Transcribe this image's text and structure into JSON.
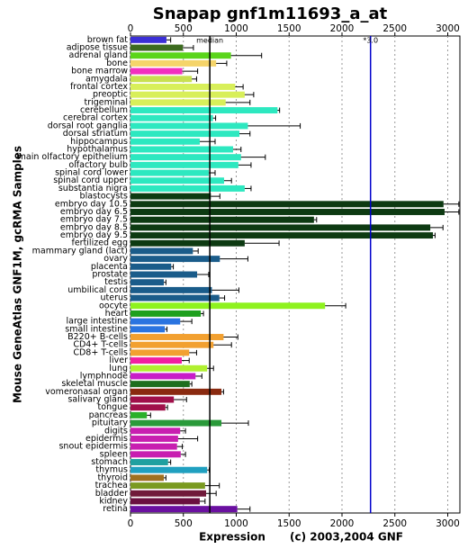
{
  "chart_data": {
    "type": "hbar",
    "title": "Snapap gnf1m11693_a_at",
    "x_label": "Expression",
    "footnote": "(c) 2003,2004 GNF",
    "y_label": "Mouse GeneAtlas GNF1M, gcRMA Samples",
    "xlim": [
      0,
      3115
    ],
    "xticks": [
      0,
      500,
      1000,
      1500,
      2000,
      2500,
      3000
    ],
    "grid": true,
    "reference_lines": [
      {
        "label": "median",
        "value": 750,
        "color": "#000000"
      },
      {
        "label": "*3.0",
        "value": 2270,
        "color": "#0000cc"
      }
    ],
    "categories": [
      "brown fat",
      "adipose tissue",
      "adrenal gland",
      "bone",
      "bone marrow",
      "amygdala",
      "frontal cortex",
      "preoptic",
      "trigeminal",
      "cerebellum",
      "cerebral cortex",
      "dorsal root ganglia",
      "dorsal striatum",
      "hippocampus",
      "hypothalamus",
      "main olfactory epithelium",
      "olfactory bulb",
      "spinal cord lower",
      "spinal cord upper",
      "substantia nigra",
      "blastocysts",
      "embryo day 10.5",
      "embryo day 6.5",
      "embryo day 7.5",
      "embryo day 8.5",
      "embryo day 9.5",
      "fertilized egg",
      "mammary gland (lact)",
      "ovary",
      "placenta",
      "prostate",
      "testis",
      "umbilical cord",
      "uterus",
      "oocyte",
      "heart",
      "large intestine",
      "small intestine",
      "B220+ B-cells",
      "CD4+ T-cells",
      "CD8+ T-cells",
      "liver",
      "lung",
      "lymphnode",
      "skeletal muscle",
      "vomeronasal organ",
      "salivary gland",
      "tongue",
      "pancreas",
      "pituitary",
      "digits",
      "epidermis",
      "snout epidermis",
      "spleen",
      "stomach",
      "thymus",
      "thyroid",
      "trachea",
      "bladder",
      "kidney",
      "retina"
    ],
    "values": [
      340,
      495,
      950,
      810,
      490,
      580,
      990,
      1080,
      900,
      1390,
      780,
      1110,
      1030,
      655,
      970,
      1045,
      1020,
      740,
      885,
      1080,
      760,
      2960,
      2970,
      1735,
      2835,
      2860,
      1080,
      590,
      845,
      385,
      630,
      315,
      770,
      840,
      1840,
      665,
      470,
      325,
      880,
      785,
      555,
      485,
      725,
      615,
      560,
      860,
      410,
      330,
      155,
      860,
      470,
      450,
      440,
      475,
      355,
      725,
      315,
      705,
      715,
      655,
      1010
    ],
    "errors": [
      40,
      100,
      290,
      100,
      145,
      45,
      75,
      85,
      230,
      20,
      25,
      495,
      100,
      145,
      75,
      230,
      120,
      60,
      70,
      60,
      85,
      145,
      135,
      25,
      120,
      20,
      325,
      50,
      265,
      20,
      110,
      20,
      255,
      50,
      195,
      25,
      110,
      20,
      135,
      170,
      70,
      70,
      60,
      60,
      20,
      20,
      120,
      20,
      35,
      255,
      50,
      185,
      50,
      45,
      25,
      20,
      20,
      135,
      95,
      50,
      120
    ],
    "colors": [
      "#3b2fd6",
      "#3c6b1f",
      "#5ad51a",
      "#f5d46a",
      "#f22fbf",
      "#c8e050",
      "#d8ef5a",
      "#d8ef5a",
      "#d8ef5a",
      "#2de8c0",
      "#2de8c0",
      "#2de8c0",
      "#2de8c0",
      "#2de8c0",
      "#2de8c0",
      "#2de8c0",
      "#2de8c0",
      "#2de8c0",
      "#2de8c0",
      "#2de8c0",
      "#0d3a12",
      "#0d3a12",
      "#0d3a12",
      "#0d3a12",
      "#0d3a12",
      "#0d3a12",
      "#0d3a12",
      "#1a5c8a",
      "#1a5c8a",
      "#1a5c8a",
      "#1a5c8a",
      "#1a5c8a",
      "#1a5c8a",
      "#1a5c8a",
      "#8ef21e",
      "#1ea01e",
      "#2a74e0",
      "#2a74e0",
      "#f2a030",
      "#f2a030",
      "#f2a030",
      "#f21ea0",
      "#b0f030",
      "#c81ec8",
      "#1e6e1e",
      "#8a2a10",
      "#a0104a",
      "#a0104a",
      "#2ab02a",
      "#2a9a3a",
      "#c81eb0",
      "#c81eb0",
      "#c81eb0",
      "#c81eb0",
      "#20a0a0",
      "#20a0c0",
      "#a07020",
      "#7a9a20",
      "#701a3a",
      "#6a1040",
      "#6a10a0"
    ]
  }
}
